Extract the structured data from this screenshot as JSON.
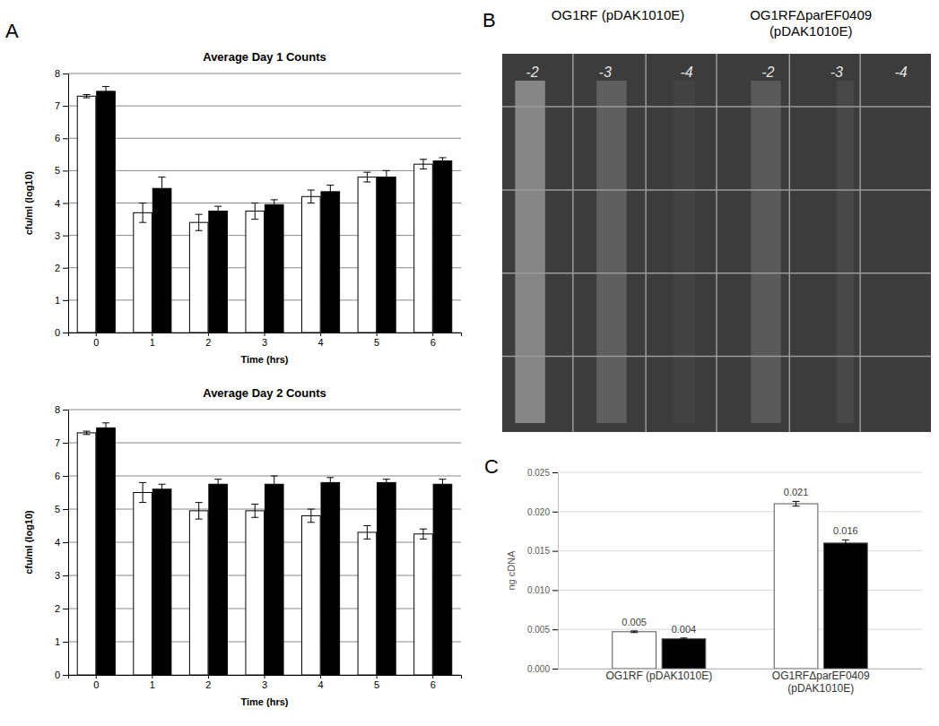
{
  "chart_data": [
    {
      "panel": "A",
      "type": "bar",
      "title": "Average Day 1 Counts",
      "x_label": "Time (hrs)",
      "y_label": "cfu/ml (log10)",
      "categories": [
        "0",
        "1",
        "2",
        "3",
        "4",
        "5",
        "6"
      ],
      "series": [
        {
          "color": "#ffffff",
          "values": [
            7.3,
            3.7,
            3.4,
            3.75,
            4.2,
            4.8,
            5.2
          ],
          "errors": [
            0.05,
            0.3,
            0.25,
            0.25,
            0.2,
            0.15,
            0.15
          ]
        },
        {
          "color": "#000000",
          "values": [
            7.45,
            4.45,
            3.75,
            3.95,
            4.35,
            4.8,
            5.3
          ],
          "errors": [
            0.15,
            0.35,
            0.15,
            0.15,
            0.2,
            0.2,
            0.1
          ]
        }
      ],
      "ylim": [
        0,
        8
      ],
      "yticks": [
        0,
        1,
        2,
        3,
        4,
        5,
        6,
        7,
        8
      ],
      "grid": true
    },
    {
      "type": "bar",
      "title": "Average Day 2 Counts",
      "x_label": "Time (hrs)",
      "y_label": "cfu/ml (log10)",
      "categories": [
        "0",
        "1",
        "2",
        "3",
        "4",
        "5",
        "6"
      ],
      "series": [
        {
          "color": "#ffffff",
          "values": [
            7.3,
            5.5,
            4.95,
            4.95,
            4.8,
            4.3,
            4.25
          ],
          "errors": [
            0.05,
            0.3,
            0.25,
            0.2,
            0.2,
            0.2,
            0.15
          ]
        },
        {
          "color": "#000000",
          "values": [
            7.45,
            5.6,
            5.75,
            5.75,
            5.8,
            5.8,
            5.75
          ],
          "errors": [
            0.15,
            0.15,
            0.15,
            0.25,
            0.15,
            0.1,
            0.15
          ]
        }
      ],
      "ylim": [
        0,
        8
      ],
      "yticks": [
        0,
        1,
        2,
        3,
        4,
        5,
        6,
        7,
        8
      ],
      "grid": true
    },
    {
      "panel": "B",
      "type": "image",
      "labels": [
        "OG1RF (pDAK1010E)",
        "OG1RFΔparEF0409 (pDAK1010E)"
      ],
      "dilutions": [
        "-2",
        "-3",
        "-4",
        "-2",
        "-3",
        "-4"
      ]
    },
    {
      "panel": "C",
      "type": "bar",
      "y_label": "ng cDNA",
      "categories": [
        "OG1RF (pDAK1010E)",
        "OG1RFΔparEF0409 (pDAK1010E)"
      ],
      "series": [
        {
          "color": "#ffffff",
          "values": [
            0.0047,
            0.021
          ],
          "value_labels": [
            "0.005",
            "0.021"
          ],
          "errors": [
            0.0001,
            0.0003
          ]
        },
        {
          "color": "#000000",
          "values": [
            0.0038,
            0.016
          ],
          "value_labels": [
            "0.004",
            "0.016"
          ],
          "errors": [
            0.0001,
            0.0004
          ]
        }
      ],
      "ylim": [
        0,
        0.025
      ],
      "yticks": [
        {
          "value": 0,
          "label": "0.000"
        },
        {
          "value": 0.005,
          "label": "0.005"
        },
        {
          "value": 0.01,
          "label": "0.010"
        },
        {
          "value": 0.015,
          "label": "0.015"
        },
        {
          "value": 0.02,
          "label": "0.020"
        },
        {
          "value": 0.025,
          "label": "0.025"
        }
      ],
      "grid": true,
      "data_labels": true
    }
  ]
}
